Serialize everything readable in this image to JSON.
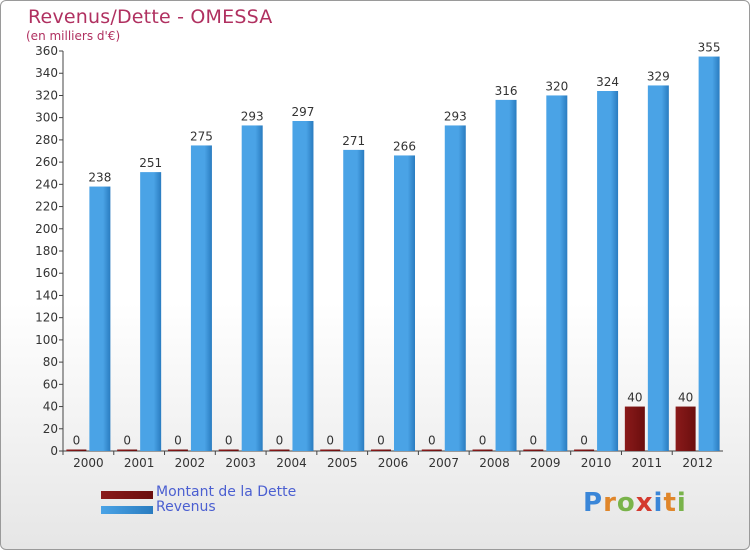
{
  "title": "Revenus/Dette - OMESSA",
  "subtitle": "(en milliers d'€)",
  "colors": {
    "dette": "#6b0e0e",
    "revenus": "#4aa3e6",
    "revenus_dark": "#2a7cc0",
    "title": "#b03060",
    "legend_text": "#4b5fd1"
  },
  "chart_data": {
    "type": "bar",
    "categories": [
      "2000",
      "2001",
      "2002",
      "2003",
      "2004",
      "2005",
      "2006",
      "2007",
      "2008",
      "2009",
      "2010",
      "2011",
      "2012"
    ],
    "series": [
      {
        "name": "Montant de la Dette",
        "values": [
          0,
          0,
          0,
          0,
          0,
          0,
          0,
          0,
          0,
          0,
          0,
          40,
          40
        ]
      },
      {
        "name": "Revenus",
        "values": [
          238,
          251,
          275,
          293,
          297,
          271,
          266,
          293,
          316,
          320,
          324,
          329,
          355
        ]
      }
    ],
    "y_ticks": [
      0,
      20,
      40,
      60,
      80,
      100,
      120,
      140,
      160,
      180,
      200,
      220,
      240,
      260,
      280,
      300,
      320,
      340,
      360
    ],
    "ylim": [
      0,
      360
    ],
    "grid": false,
    "legend_position": "bottom-left"
  },
  "legend": [
    {
      "label": "Montant de la Dette"
    },
    {
      "label": "Revenus"
    }
  ],
  "logo": {
    "text": "Proxiti"
  }
}
